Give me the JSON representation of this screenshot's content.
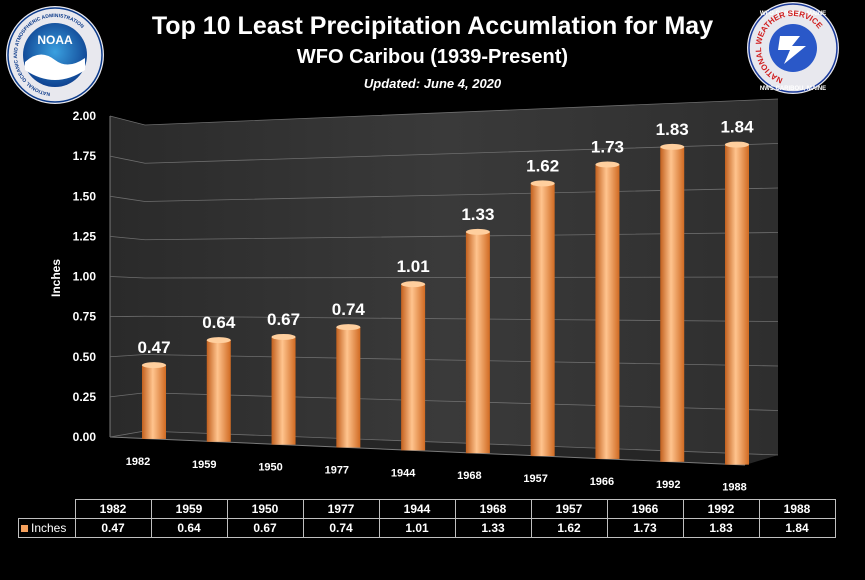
{
  "title": "Top 10 Least Precipitation Accumlation for May",
  "subtitle": "WFO Caribou (1939-Present)",
  "updated": "Updated: June 4, 2020",
  "logos": {
    "left": {
      "name": "NOAA",
      "ring_text": "NATIONAL OCEANIC AND ATMOSPHERIC ADMINISTRATION",
      "bottom_text": "U.S. DEPARTMENT OF COMMERCE"
    },
    "right": {
      "top_text": "WFO CARIBOU, MAINE",
      "ring_text": "NATIONAL WEATHER SERVICE",
      "bottom_text": "NWS CARIBOU, MAINE"
    }
  },
  "colors": {
    "bar": "#f0883a",
    "bar_highlight": "#ffd0a0",
    "background": "#000000"
  },
  "chart_data": {
    "type": "bar",
    "categories": [
      "1982",
      "1959",
      "1950",
      "1977",
      "1944",
      "1968",
      "1957",
      "1966",
      "1992",
      "1988"
    ],
    "series": [
      {
        "name": "Inches",
        "values": [
          0.47,
          0.64,
          0.67,
          0.74,
          1.01,
          1.33,
          1.62,
          1.73,
          1.83,
          1.84
        ]
      }
    ],
    "ylabel": "Inches",
    "ylim": [
      0,
      2.0
    ],
    "yticks": [
      "0.00",
      "0.25",
      "0.50",
      "0.75",
      "1.00",
      "1.25",
      "1.50",
      "1.75",
      "2.00"
    ],
    "data_labels": [
      "0.47",
      "0.64",
      "0.67",
      "0.74",
      "1.01",
      "1.33",
      "1.62",
      "1.73",
      "1.83",
      "1.84"
    ],
    "legend": "data table",
    "grid": true
  },
  "table": {
    "legend_label": "Inches",
    "years": [
      "1982",
      "1959",
      "1950",
      "1977",
      "1944",
      "1968",
      "1957",
      "1966",
      "1992",
      "1988"
    ],
    "values": [
      "0.47",
      "0.64",
      "0.67",
      "0.74",
      "1.01",
      "1.33",
      "1.62",
      "1.73",
      "1.83",
      "1.84"
    ]
  }
}
